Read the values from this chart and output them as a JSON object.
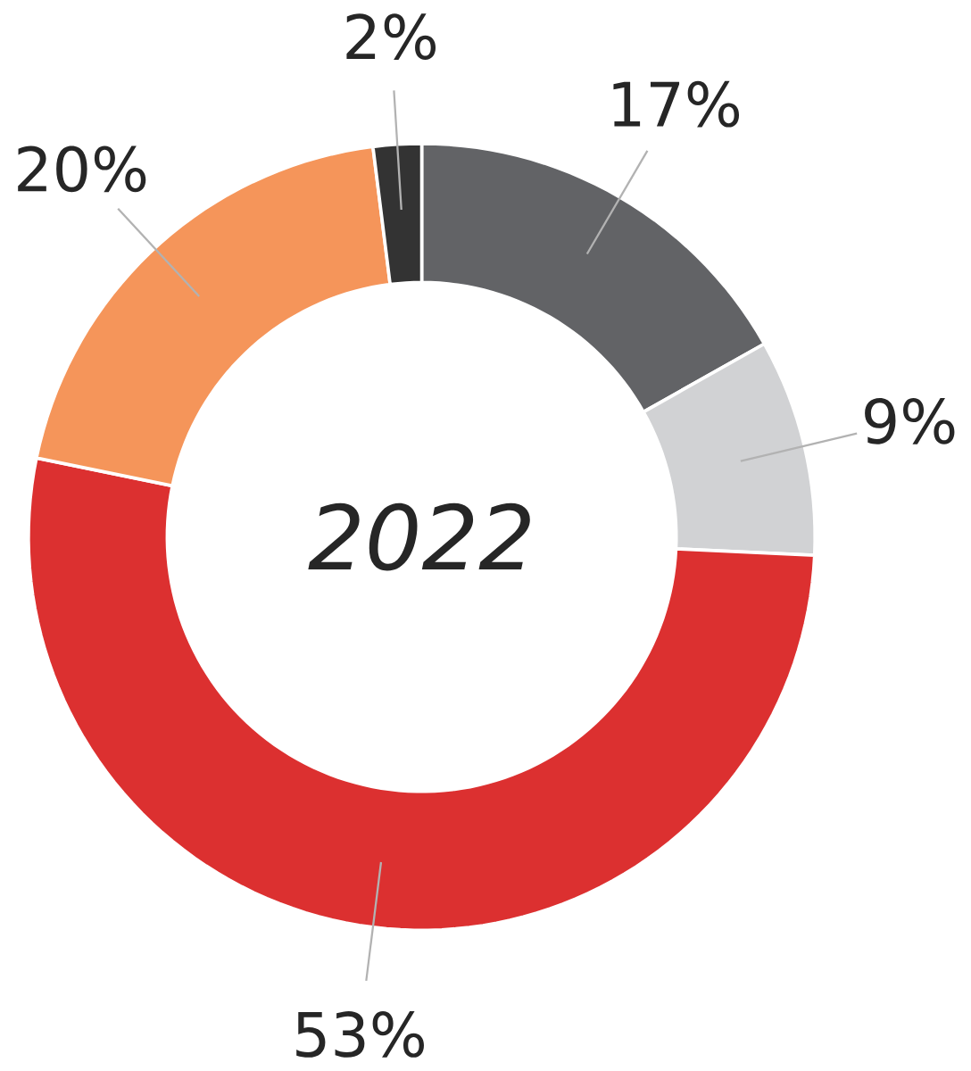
{
  "chart_data": {
    "type": "donut",
    "title": "*2022*",
    "categories": [
      null,
      null,
      null,
      null,
      null
    ],
    "values": [
      17,
      9,
      53,
      20,
      2
    ],
    "value_labels": [
      "17%",
      "9%",
      "53%",
      "20%",
      "2%"
    ],
    "colors": [
      "#626366",
      "#d1d2d4",
      "#dc3030",
      "#f5955a",
      "#333333"
    ]
  }
}
